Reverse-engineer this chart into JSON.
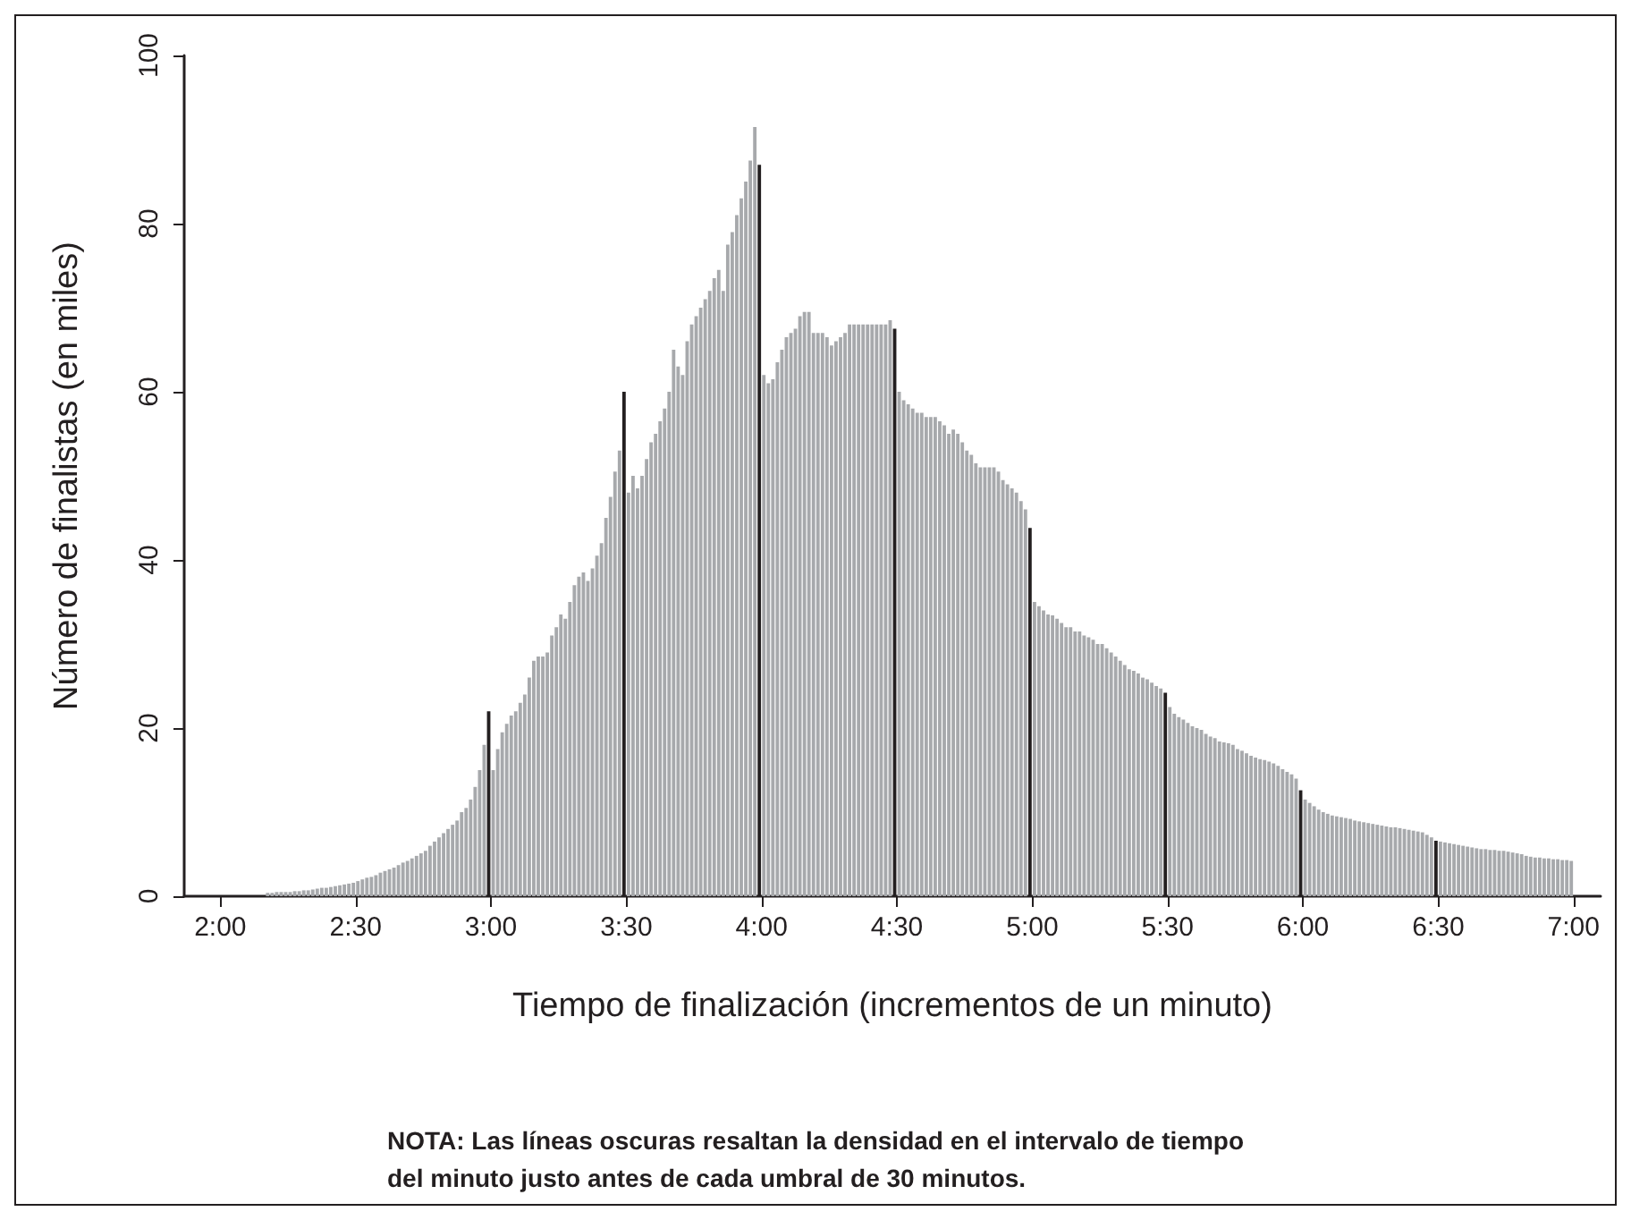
{
  "chart_data": {
    "type": "histogram",
    "xlabel": "Tiempo de finalización (incrementos de un minuto)",
    "ylabel": "Número de finalistas (en miles)",
    "annotations": [
      "NOTA: Las líneas oscuras resaltan la densidad en el intervalo de tiempo\ndel minuto justo antes de cada umbral de 30 minutos."
    ],
    "xlim": [
      112,
      426
    ],
    "xticks": [
      {
        "value": 120,
        "label": "2:00"
      },
      {
        "value": 150,
        "label": "2:30"
      },
      {
        "value": 180,
        "label": "3:00"
      },
      {
        "value": 210,
        "label": "3:30"
      },
      {
        "value": 240,
        "label": "4:00"
      },
      {
        "value": 270,
        "label": "4:30"
      },
      {
        "value": 300,
        "label": "5:00"
      },
      {
        "value": 330,
        "label": "5:30"
      },
      {
        "value": 360,
        "label": "6:00"
      },
      {
        "value": 390,
        "label": "6:30"
      },
      {
        "value": 420,
        "label": "7:00"
      }
    ],
    "ylim": [
      0,
      100
    ],
    "yticks": [
      0,
      20,
      40,
      60,
      80,
      100
    ],
    "bins": [
      130,
      131,
      132,
      133,
      134,
      135,
      136,
      137,
      138,
      139,
      140,
      141,
      142,
      143,
      144,
      145,
      146,
      147,
      148,
      149,
      150,
      151,
      152,
      153,
      154,
      155,
      156,
      157,
      158,
      159,
      160,
      161,
      162,
      163,
      164,
      165,
      166,
      167,
      168,
      169,
      170,
      171,
      172,
      173,
      174,
      175,
      176,
      177,
      178,
      179,
      180,
      181,
      182,
      183,
      184,
      185,
      186,
      187,
      188,
      189,
      190,
      191,
      192,
      193,
      194,
      195,
      196,
      197,
      198,
      199,
      200,
      201,
      202,
      203,
      204,
      205,
      206,
      207,
      208,
      209,
      210,
      211,
      212,
      213,
      214,
      215,
      216,
      217,
      218,
      219,
      220,
      221,
      222,
      223,
      224,
      225,
      226,
      227,
      228,
      229,
      230,
      231,
      232,
      233,
      234,
      235,
      236,
      237,
      238,
      239,
      240,
      241,
      242,
      243,
      244,
      245,
      246,
      247,
      248,
      249,
      250,
      251,
      252,
      253,
      254,
      255,
      256,
      257,
      258,
      259,
      260,
      261,
      262,
      263,
      264,
      265,
      266,
      267,
      268,
      269,
      270,
      271,
      272,
      273,
      274,
      275,
      276,
      277,
      278,
      279,
      280,
      281,
      282,
      283,
      284,
      285,
      286,
      287,
      288,
      289,
      290,
      291,
      292,
      293,
      294,
      295,
      296,
      297,
      298,
      299,
      300,
      301,
      302,
      303,
      304,
      305,
      306,
      307,
      308,
      309,
      310,
      311,
      312,
      313,
      314,
      315,
      316,
      317,
      318,
      319,
      320,
      321,
      322,
      323,
      324,
      325,
      326,
      327,
      328,
      329,
      330,
      331,
      332,
      333,
      334,
      335,
      336,
      337,
      338,
      339,
      340,
      341,
      342,
      343,
      344,
      345,
      346,
      347,
      348,
      349,
      350,
      351,
      352,
      353,
      354,
      355,
      356,
      357,
      358,
      359,
      360,
      361,
      362,
      363,
      364,
      365,
      366,
      367,
      368,
      369,
      370,
      371,
      372,
      373,
      374,
      375,
      376,
      377,
      378,
      379,
      380,
      381,
      382,
      383,
      384,
      385,
      386,
      387,
      388,
      389,
      390,
      391,
      392,
      393,
      394,
      395,
      396,
      397,
      398,
      399,
      400,
      401,
      402,
      403,
      404,
      405,
      406,
      407,
      408,
      409,
      410,
      411,
      412,
      413,
      414,
      415,
      416,
      417,
      418,
      419,
      420
    ],
    "series": [
      {
        "color": "#a7a9ac",
        "values": [
          0.4,
          0.4,
          0.5,
          0.5,
          0.5,
          0.5,
          0.6,
          0.6,
          0.7,
          0.7,
          0.8,
          0.9,
          1,
          1,
          1.1,
          1.2,
          1.3,
          1.4,
          1.5,
          1.6,
          1.8,
          2,
          2.2,
          2.3,
          2.5,
          2.8,
          3,
          3.2,
          3.4,
          3.7,
          4,
          4.2,
          4.5,
          4.8,
          5.1,
          5.4,
          6,
          6.5,
          7,
          7.5,
          8,
          8.5,
          9,
          10,
          10.5,
          11.5,
          13,
          15,
          18,
          null,
          15,
          17.5,
          19.5,
          20.5,
          21.5,
          22,
          23,
          24,
          26,
          28,
          28.5,
          28.5,
          29,
          31,
          32,
          33.5,
          33,
          35,
          37,
          38,
          38.5,
          37.5,
          39,
          40.5,
          42,
          45,
          47.5,
          50.5,
          53,
          null,
          48,
          50,
          48.5,
          50,
          52,
          54,
          55,
          56.5,
          58,
          60,
          65,
          63,
          62,
          66,
          68,
          69,
          70,
          71,
          72,
          73.5,
          74.5,
          72,
          77.5,
          79,
          81,
          83,
          85,
          87.5,
          91.5,
          null,
          62,
          61,
          61.5,
          63.5,
          65,
          66.5,
          67,
          67.5,
          69,
          69.5,
          69.5,
          67,
          67,
          67,
          66.5,
          65.5,
          66,
          66.5,
          67,
          68,
          68,
          68,
          68,
          68,
          68,
          68,
          68,
          68,
          68.5,
          null,
          60,
          59,
          58.5,
          58,
          57.5,
          57.5,
          57,
          57,
          57,
          56.5,
          56,
          55,
          55.5,
          55,
          54,
          53,
          52.5,
          51.5,
          51,
          51,
          51,
          51,
          50.5,
          49.5,
          49,
          48.5,
          48,
          47,
          46,
          null,
          35,
          34.5,
          34,
          33.5,
          33.4,
          33,
          32.5,
          32,
          32,
          31.5,
          31.5,
          31,
          30.8,
          30.5,
          30,
          30,
          29.5,
          29,
          28.5,
          28,
          27.5,
          27,
          26.8,
          26.5,
          26,
          25.8,
          25.4,
          25,
          24.7,
          null,
          22.5,
          21.7,
          21.3,
          21,
          20.6,
          20.2,
          20,
          19.8,
          19.3,
          19,
          18.8,
          18.4,
          18.3,
          18.2,
          18,
          17.5,
          17.3,
          17,
          16.7,
          16.5,
          16.3,
          16.2,
          16,
          15.8,
          15.5,
          15.1,
          14.8,
          14.5,
          14,
          null,
          11.5,
          11.1,
          10.7,
          10.3,
          10,
          9.8,
          9.6,
          9.5,
          9.4,
          9.3,
          9.2,
          9,
          8.9,
          8.8,
          8.7,
          8.6,
          8.5,
          8.4,
          8.3,
          8.2,
          8.2,
          8.1,
          8,
          7.9,
          7.8,
          7.7,
          7.6,
          7.3,
          7,
          null,
          6.5,
          6.4,
          6.3,
          6.2,
          6.1,
          6,
          5.9,
          5.8,
          5.7,
          5.6,
          5.6,
          5.5,
          5.5,
          5.4,
          5.4,
          5.3,
          5.2,
          5.1,
          5,
          4.8,
          4.7,
          4.6,
          4.6,
          4.5,
          4.5,
          4.4,
          4.4,
          4.3,
          4.3,
          4.2
        ]
      },
      {
        "color": "#231f20",
        "values": [
          null,
          null,
          null,
          null,
          null,
          null,
          null,
          null,
          null,
          null,
          null,
          null,
          null,
          null,
          null,
          null,
          null,
          null,
          null,
          null,
          null,
          null,
          null,
          null,
          null,
          null,
          null,
          null,
          null,
          null,
          null,
          null,
          null,
          null,
          null,
          null,
          null,
          null,
          null,
          null,
          null,
          null,
          null,
          null,
          null,
          null,
          null,
          null,
          null,
          22,
          null,
          null,
          null,
          null,
          null,
          null,
          null,
          null,
          null,
          null,
          null,
          null,
          null,
          null,
          null,
          null,
          null,
          null,
          null,
          null,
          null,
          null,
          null,
          null,
          null,
          null,
          null,
          null,
          null,
          60,
          null,
          null,
          null,
          null,
          null,
          null,
          null,
          null,
          null,
          null,
          null,
          null,
          null,
          null,
          null,
          null,
          null,
          null,
          null,
          null,
          null,
          null,
          null,
          null,
          null,
          null,
          null,
          null,
          null,
          87,
          null,
          null,
          null,
          null,
          null,
          null,
          null,
          null,
          null,
          null,
          null,
          null,
          null,
          null,
          null,
          null,
          null,
          null,
          null,
          null,
          null,
          null,
          null,
          null,
          null,
          null,
          null,
          null,
          null,
          67.5,
          null,
          null,
          null,
          null,
          null,
          null,
          null,
          null,
          null,
          null,
          null,
          null,
          null,
          null,
          null,
          null,
          null,
          null,
          null,
          null,
          null,
          null,
          null,
          null,
          null,
          null,
          null,
          null,
          null,
          43.8,
          null,
          null,
          null,
          null,
          null,
          null,
          null,
          null,
          null,
          null,
          null,
          null,
          null,
          null,
          null,
          null,
          null,
          null,
          null,
          null,
          null,
          null,
          null,
          null,
          null,
          null,
          null,
          null,
          null,
          24.2,
          null,
          null,
          null,
          null,
          null,
          null,
          null,
          null,
          null,
          null,
          null,
          null,
          null,
          null,
          null,
          null,
          null,
          null,
          null,
          null,
          null,
          null,
          null,
          null,
          null,
          null,
          null,
          null,
          null,
          12.6,
          null,
          null,
          null,
          null,
          null,
          null,
          null,
          null,
          null,
          null,
          null,
          null,
          null,
          null,
          null,
          null,
          null,
          null,
          null,
          null,
          null,
          null,
          null,
          null,
          null,
          null,
          null,
          null,
          null,
          6.6,
          null,
          null,
          null,
          null,
          null,
          null,
          null,
          null,
          null,
          null,
          null,
          null,
          null,
          null,
          null,
          null,
          null,
          null,
          null,
          null,
          null,
          null,
          null,
          null,
          null,
          null,
          null,
          null,
          null,
          null
        ]
      }
    ]
  }
}
